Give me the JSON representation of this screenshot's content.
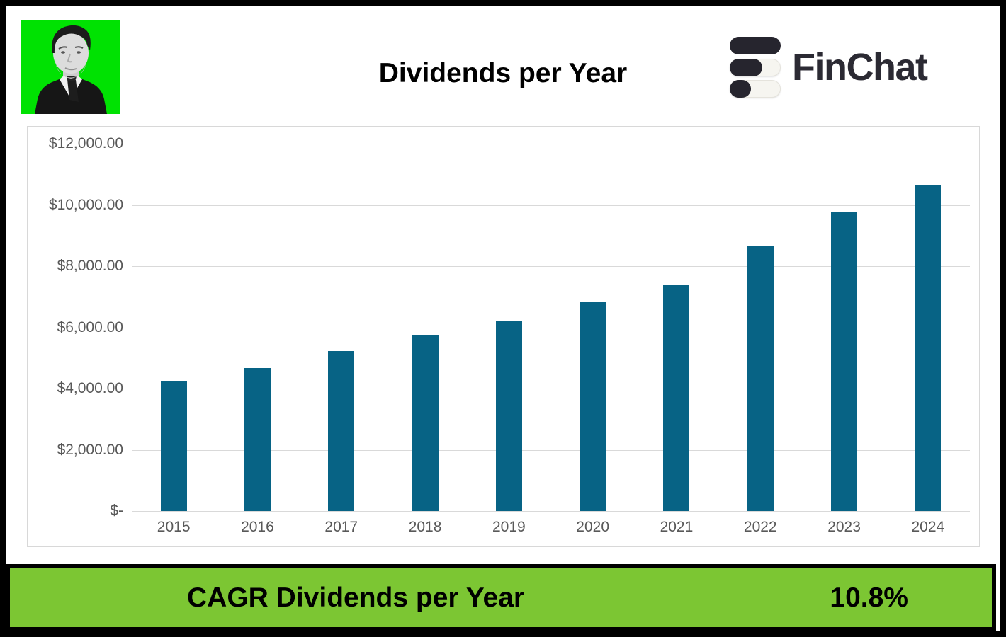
{
  "header": {
    "title": "Dividends per Year",
    "logo_text": "FinChat"
  },
  "chart_data": {
    "type": "bar",
    "title": "Dividends per Year",
    "categories": [
      "2015",
      "2016",
      "2017",
      "2018",
      "2019",
      "2020",
      "2021",
      "2022",
      "2023",
      "2024"
    ],
    "values": [
      4240,
      4670,
      5230,
      5740,
      6210,
      6810,
      7390,
      8650,
      9780,
      10640
    ],
    "series_name": "Dividends per Year",
    "xlabel": "",
    "ylabel": "",
    "ylim": [
      0,
      12000
    ],
    "yticks": [
      {
        "value": 12000,
        "label": "$12,000.00"
      },
      {
        "value": 10000,
        "label": "$10,000.00"
      },
      {
        "value": 8000,
        "label": "$8,000.00"
      },
      {
        "value": 6000,
        "label": "$6,000.00"
      },
      {
        "value": 4000,
        "label": "$4,000.00"
      },
      {
        "value": 2000,
        "label": "$2,000.00"
      },
      {
        "value": 0,
        "label": "$-"
      }
    ],
    "grid": true,
    "legend": false,
    "bar_color": "#076385",
    "gridline_color": "#d9d9d9",
    "tick_label_color": "#595959"
  },
  "footer": {
    "cagr_label": "CAGR Dividends per Year",
    "cagr_value": "10.8%",
    "background_color": "#7cc633"
  },
  "colors": {
    "photo_background": "#00e202",
    "logo_dark": "#26252e",
    "logo_light_pill": "#f6f5f0",
    "frame_border": "#000000"
  }
}
